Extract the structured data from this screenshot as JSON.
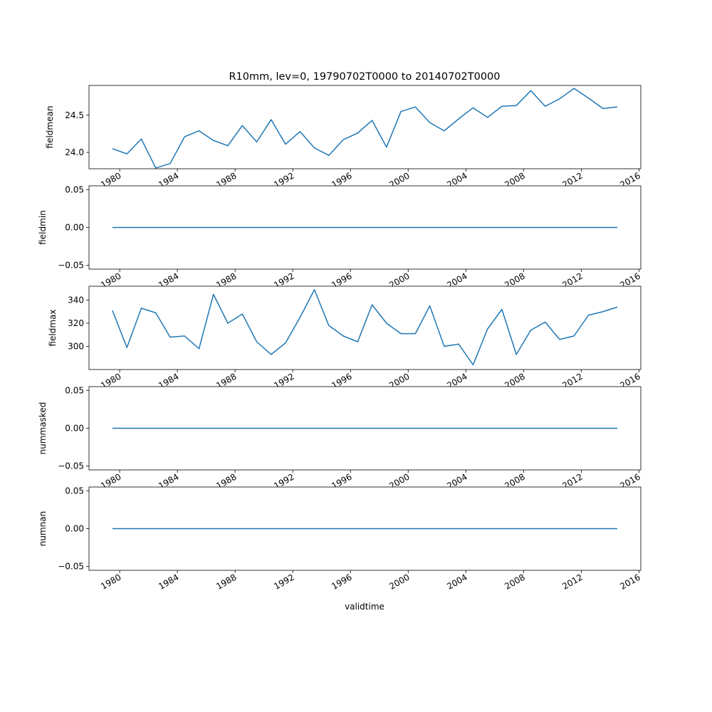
{
  "chart_data": {
    "type": "line",
    "title": "R10mm, lev=0, 19790702T0000 to 20140702T0000",
    "xlabel": "validtime",
    "line_color": "#1f77b4",
    "x": [
      "1979-07-02",
      "1980-07-02",
      "1981-07-02",
      "1982-07-02",
      "1983-07-02",
      "1984-07-02",
      "1985-07-02",
      "1986-07-02",
      "1987-07-02",
      "1988-07-02",
      "1989-07-02",
      "1990-07-02",
      "1991-07-02",
      "1992-07-02",
      "1993-07-02",
      "1994-07-02",
      "1995-07-02",
      "1996-07-02",
      "1997-07-02",
      "1998-07-02",
      "1999-07-02",
      "2000-07-02",
      "2001-07-02",
      "2002-07-02",
      "2003-07-02",
      "2004-07-02",
      "2005-07-02",
      "2006-07-02",
      "2007-07-02",
      "2008-07-02",
      "2009-07-02",
      "2010-07-02",
      "2011-07-02",
      "2012-07-02",
      "2013-07-02",
      "2014-07-02"
    ],
    "xlim": [
      "1977-11-15",
      "2016-02-17"
    ],
    "x_ticks": [
      "1980",
      "1984",
      "1988",
      "1992",
      "1996",
      "2000",
      "2004",
      "2008",
      "2012",
      "2016"
    ],
    "panels": [
      {
        "ylabel": "fieldmean",
        "ylim": [
          23.78,
          24.9
        ],
        "y_ticks": [
          "24.0",
          "24.5"
        ],
        "values": [
          24.05,
          23.98,
          24.18,
          23.79,
          23.85,
          24.21,
          24.29,
          24.16,
          24.09,
          24.36,
          24.14,
          24.44,
          24.11,
          24.28,
          24.06,
          23.96,
          24.17,
          24.26,
          24.43,
          24.07,
          24.55,
          24.61,
          24.4,
          24.29,
          24.45,
          24.6,
          24.47,
          24.62,
          24.63,
          24.83,
          24.62,
          24.72,
          24.86,
          24.73,
          24.59,
          24.61
        ]
      },
      {
        "ylabel": "fieldmin",
        "ylim": [
          -0.055,
          0.055
        ],
        "y_ticks": [
          "−0.05",
          "0.00",
          "0.05"
        ],
        "values": [
          0,
          0,
          0,
          0,
          0,
          0,
          0,
          0,
          0,
          0,
          0,
          0,
          0,
          0,
          0,
          0,
          0,
          0,
          0,
          0,
          0,
          0,
          0,
          0,
          0,
          0,
          0,
          0,
          0,
          0,
          0,
          0,
          0,
          0,
          0,
          0
        ]
      },
      {
        "ylabel": "fieldmax",
        "ylim": [
          280,
          352
        ],
        "y_ticks": [
          "300",
          "320",
          "340"
        ],
        "values": [
          331,
          299,
          333,
          329,
          308,
          309,
          298,
          345,
          320,
          328,
          304,
          293,
          303,
          325,
          349,
          318,
          309,
          304,
          336,
          320,
          311,
          311,
          335,
          300,
          302,
          284,
          315,
          332,
          293,
          314,
          321,
          306,
          309,
          327,
          330,
          334
        ]
      },
      {
        "ylabel": "nummasked",
        "ylim": [
          -0.055,
          0.055
        ],
        "y_ticks": [
          "−0.05",
          "0.00",
          "0.05"
        ],
        "values": [
          0,
          0,
          0,
          0,
          0,
          0,
          0,
          0,
          0,
          0,
          0,
          0,
          0,
          0,
          0,
          0,
          0,
          0,
          0,
          0,
          0,
          0,
          0,
          0,
          0,
          0,
          0,
          0,
          0,
          0,
          0,
          0,
          0,
          0,
          0,
          0
        ]
      },
      {
        "ylabel": "numnan",
        "ylim": [
          -0.055,
          0.055
        ],
        "y_ticks": [
          "−0.05",
          "0.00",
          "0.05"
        ],
        "values": [
          0,
          0,
          0,
          0,
          0,
          0,
          0,
          0,
          0,
          0,
          0,
          0,
          0,
          0,
          0,
          0,
          0,
          0,
          0,
          0,
          0,
          0,
          0,
          0,
          0,
          0,
          0,
          0,
          0,
          0,
          0,
          0,
          0,
          0,
          0,
          0
        ]
      }
    ]
  }
}
